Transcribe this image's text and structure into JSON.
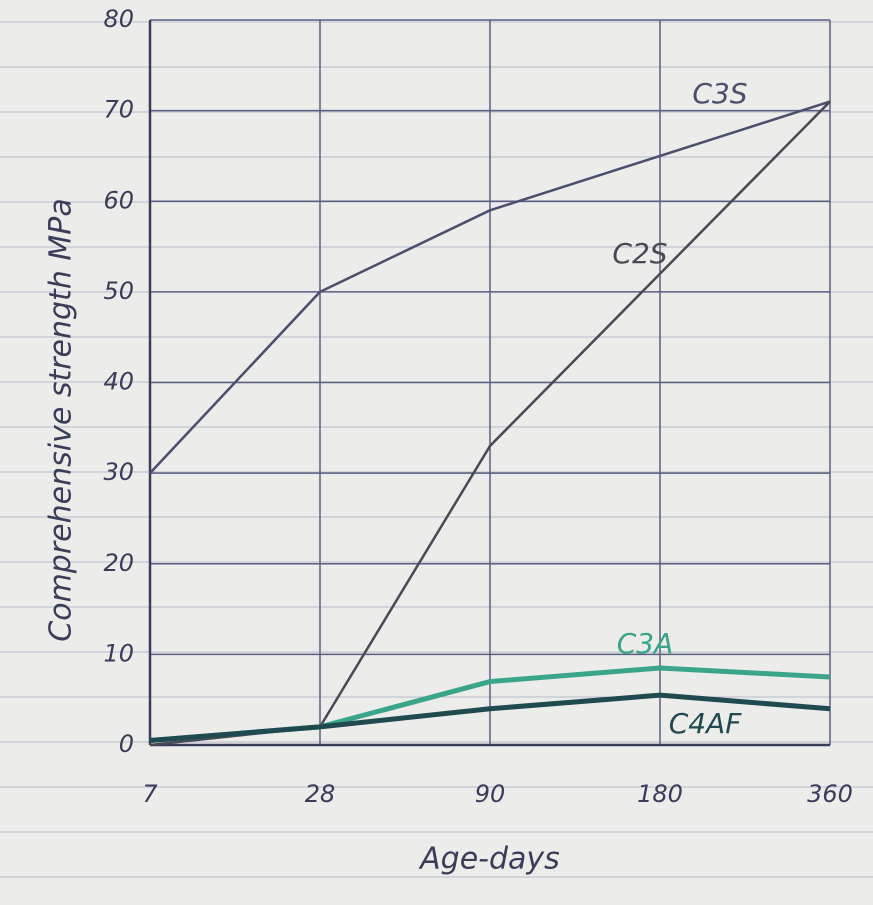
{
  "chart_data": {
    "type": "line",
    "x_label": "Age-days",
    "y_label": "Comprehensive strength MPa",
    "categories": [
      "7",
      "28",
      "90",
      "180",
      "360"
    ],
    "series": [
      {
        "name": "C3S",
        "color": "#4b4f6e",
        "values": [
          30,
          50,
          59,
          65,
          71
        ]
      },
      {
        "name": "C2S",
        "color": "#4a4a55",
        "values": [
          0,
          2,
          33,
          52,
          71
        ]
      },
      {
        "name": "C3A",
        "color": "#3aa58a",
        "values": [
          0.5,
          2,
          7,
          8.5,
          7.5
        ]
      },
      {
        "name": "C4AF",
        "color": "#1f4a50",
        "values": [
          0.5,
          2,
          4,
          5.5,
          4
        ]
      }
    ],
    "ylim": [
      0,
      80
    ],
    "yticks": [
      0,
      10,
      20,
      30,
      40,
      50,
      60,
      70,
      80
    ],
    "grid": true
  }
}
